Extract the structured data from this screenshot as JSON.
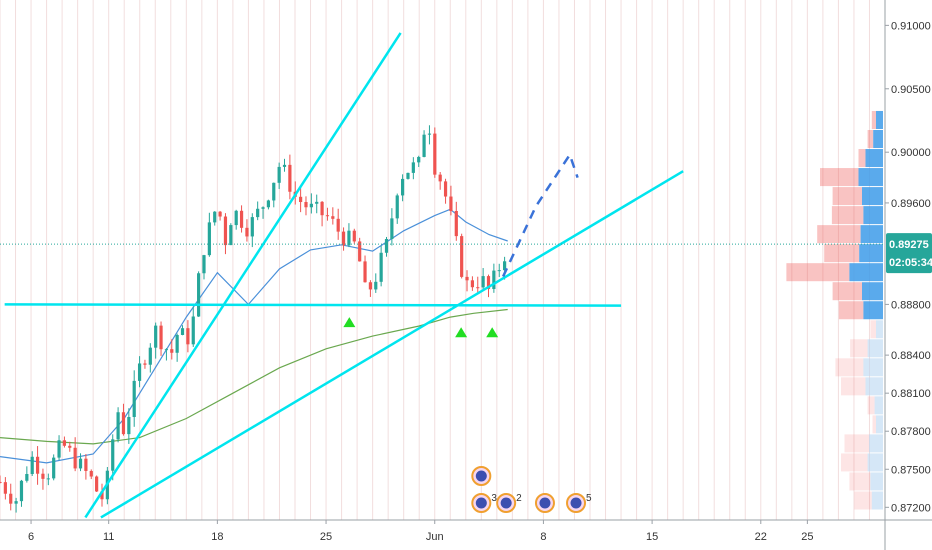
{
  "chart_data": {
    "type": "candlestick",
    "x_ticks": [
      {
        "label": "6",
        "day": 6
      },
      {
        "label": "11",
        "day": 11
      },
      {
        "label": "18",
        "day": 18
      },
      {
        "label": "25",
        "day": 25
      },
      {
        "label": "Jun",
        "day": 32
      },
      {
        "label": "8",
        "day": 39
      },
      {
        "label": "15",
        "day": 46
      },
      {
        "label": "22",
        "day": 53
      },
      {
        "label": "25",
        "day": 56
      }
    ],
    "y_ticks": [
      "0.91000",
      "0.90500",
      "0.90000",
      "0.89600",
      "0.89275",
      "0.88800",
      "0.88400",
      "0.88100",
      "0.87800",
      "0.87500",
      "0.87200"
    ],
    "y_range": [
      0.871,
      0.912
    ],
    "x_range": [
      4,
      61
    ],
    "last_price": {
      "value": 0.89275,
      "label": "0.89275",
      "countdown": "02:05:34",
      "color": "#26a69a"
    },
    "colors": {
      "up": "#26a69a",
      "down": "#ef5350",
      "trendline": "#00e5ee",
      "ma_fast": "#4a90d9",
      "ma_slow": "#6aa84f",
      "projection": "#3a72d8",
      "marker": "#22dd22"
    },
    "candle_anchors": [
      [
        4.0,
        0.874
      ],
      [
        5.0,
        0.8725
      ],
      [
        6.0,
        0.876
      ],
      [
        7.0,
        0.8745
      ],
      [
        8.0,
        0.877
      ],
      [
        9.0,
        0.8755
      ],
      [
        10.0,
        0.874
      ],
      [
        10.5,
        0.8725
      ],
      [
        11.0,
        0.8745
      ],
      [
        11.5,
        0.88
      ],
      [
        12.0,
        0.878
      ],
      [
        13.0,
        0.883
      ],
      [
        14.0,
        0.886
      ],
      [
        15.0,
        0.884
      ],
      [
        15.5,
        0.886
      ],
      [
        16.0,
        0.885
      ],
      [
        16.5,
        0.887
      ],
      [
        17.0,
        0.892
      ],
      [
        18.0,
        0.896
      ],
      [
        18.5,
        0.893
      ],
      [
        19.0,
        0.8955
      ],
      [
        20.0,
        0.894
      ],
      [
        20.5,
        0.895
      ],
      [
        21.0,
        0.896
      ],
      [
        22.0,
        0.899
      ],
      [
        22.5,
        0.898
      ],
      [
        23.0,
        0.8965
      ],
      [
        24.0,
        0.8955
      ],
      [
        25.0,
        0.895
      ],
      [
        26.0,
        0.8935
      ],
      [
        27.0,
        0.8925
      ],
      [
        27.5,
        0.889
      ],
      [
        28.0,
        0.8895
      ],
      [
        29.0,
        0.893
      ],
      [
        29.5,
        0.897
      ],
      [
        30.0,
        0.8985
      ],
      [
        31.0,
        0.899
      ],
      [
        31.5,
        0.9035
      ],
      [
        32.0,
        0.899
      ],
      [
        32.5,
        0.8975
      ],
      [
        33.0,
        0.895
      ],
      [
        33.5,
        0.892
      ],
      [
        34.0,
        0.8895
      ],
      [
        35.0,
        0.89
      ],
      [
        35.5,
        0.889
      ],
      [
        36.0,
        0.8905
      ],
      [
        36.5,
        0.892
      ]
    ],
    "candle_count": 95,
    "ma_fast": [
      [
        4.0,
        0.876
      ],
      [
        7.0,
        0.8755
      ],
      [
        10.0,
        0.8762
      ],
      [
        12.0,
        0.879
      ],
      [
        14.0,
        0.883
      ],
      [
        16.0,
        0.887
      ],
      [
        18.0,
        0.8905
      ],
      [
        20.0,
        0.888
      ],
      [
        22.0,
        0.8908
      ],
      [
        24.0,
        0.8923
      ],
      [
        26.0,
        0.8927
      ],
      [
        28.0,
        0.8922
      ],
      [
        30.0,
        0.8938
      ],
      [
        32.0,
        0.895
      ],
      [
        33.0,
        0.8955
      ],
      [
        34.0,
        0.8945
      ],
      [
        35.5,
        0.8935
      ],
      [
        36.7,
        0.893
      ]
    ],
    "ma_slow": [
      [
        4.0,
        0.8775
      ],
      [
        7.0,
        0.8772
      ],
      [
        10.0,
        0.877
      ],
      [
        13.0,
        0.8775
      ],
      [
        16.0,
        0.879
      ],
      [
        19.0,
        0.881
      ],
      [
        22.0,
        0.883
      ],
      [
        25.0,
        0.8845
      ],
      [
        28.0,
        0.8855
      ],
      [
        31.0,
        0.8863
      ],
      [
        33.0,
        0.887
      ],
      [
        34.5,
        0.8873
      ],
      [
        36.7,
        0.8876
      ]
    ],
    "trendlines": [
      {
        "from": [
          9.5,
          0.8712
        ],
        "to": [
          29.8,
          0.9094
        ]
      },
      {
        "from": [
          10.5,
          0.8712
        ],
        "to": [
          48.0,
          0.8985
        ]
      },
      {
        "from": [
          4.3,
          0.888
        ],
        "to": [
          44.0,
          0.8879
        ]
      }
    ],
    "projection": [
      [
        36.4,
        0.8902
      ],
      [
        38.5,
        0.8957
      ],
      [
        40.7,
        0.8998
      ],
      [
        41.2,
        0.898
      ]
    ],
    "markers_up": [
      [
        26.5,
        0.8866
      ],
      [
        33.7,
        0.8858
      ],
      [
        35.7,
        0.8858
      ]
    ],
    "volume_profile": {
      "bins": [
        {
          "price": 0.9025,
          "up": 0.1,
          "down": 0.06
        },
        {
          "price": 0.901,
          "up": 0.14,
          "down": 0.08
        },
        {
          "price": 0.8995,
          "up": 0.25,
          "down": 0.1
        },
        {
          "price": 0.898,
          "up": 0.35,
          "down": 0.55
        },
        {
          "price": 0.8965,
          "up": 0.3,
          "down": 0.42
        },
        {
          "price": 0.895,
          "up": 0.28,
          "down": 0.45
        },
        {
          "price": 0.8935,
          "up": 0.32,
          "down": 0.62
        },
        {
          "price": 0.892,
          "up": 0.34,
          "down": 0.5
        },
        {
          "price": 0.8905,
          "up": 0.48,
          "down": 0.9
        },
        {
          "price": 0.889,
          "up": 0.3,
          "down": 0.42
        },
        {
          "price": 0.8875,
          "up": 0.28,
          "down": 0.35
        },
        {
          "price": 0.886,
          "up": 0.1,
          "down": 0.08
        },
        {
          "price": 0.8845,
          "up": 0.22,
          "down": 0.25
        },
        {
          "price": 0.883,
          "up": 0.28,
          "down": 0.4
        },
        {
          "price": 0.8815,
          "up": 0.25,
          "down": 0.35
        },
        {
          "price": 0.88,
          "up": 0.12,
          "down": 0.1
        },
        {
          "price": 0.8785,
          "up": 0.1,
          "down": 0.05
        },
        {
          "price": 0.877,
          "up": 0.2,
          "down": 0.35
        },
        {
          "price": 0.8755,
          "up": 0.22,
          "down": 0.38
        },
        {
          "price": 0.874,
          "up": 0.18,
          "down": 0.3
        },
        {
          "price": 0.8725,
          "up": 0.16,
          "down": 0.25
        }
      ]
    },
    "events": [
      {
        "day": 35.0,
        "row": 0,
        "label": ""
      },
      {
        "day": 35.0,
        "row": 1,
        "label": "3"
      },
      {
        "day": 36.6,
        "row": 1,
        "label": "2"
      },
      {
        "day": 39.1,
        "row": 1,
        "label": ""
      },
      {
        "day": 41.1,
        "row": 1,
        "label": "5"
      }
    ]
  }
}
